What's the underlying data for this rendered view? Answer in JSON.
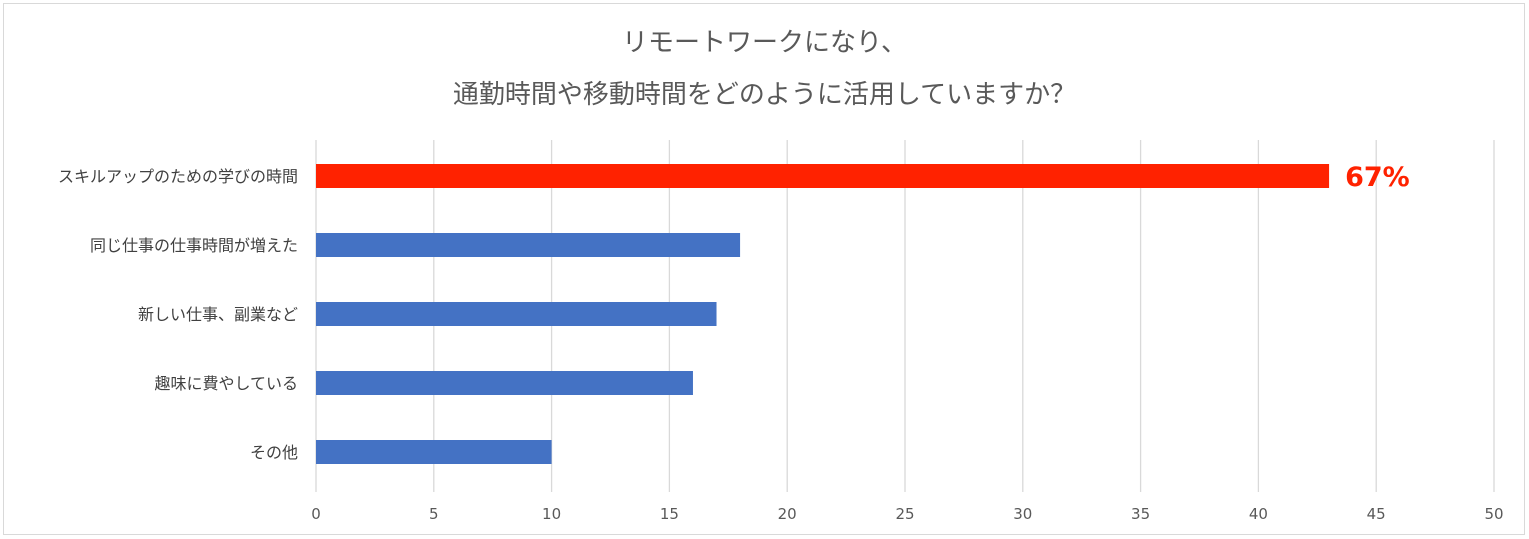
{
  "chart_data": {
    "type": "bar",
    "orientation": "horizontal",
    "title": [
      "リモートワークになり、",
      "通勤時間や移動時間をどのように活用していますか？"
    ],
    "categories": [
      "スキルアップのための学びの時間",
      "同じ仕事の仕事時間が増えた",
      "新しい仕事、副業など",
      "趣味に費やしている",
      "その他"
    ],
    "values": [
      43,
      18,
      17,
      16,
      10
    ],
    "bar_colors": [
      "#ff2200",
      "#4472c4",
      "#4472c4",
      "#4472c4",
      "#4472c4"
    ],
    "highlight_color": "#ff2200",
    "data_labels": [
      "67%",
      "",
      "",
      "",
      ""
    ],
    "xlim": [
      0,
      50
    ],
    "ticks": [
      0,
      5,
      10,
      15,
      20,
      25,
      30,
      35,
      40,
      45,
      50
    ],
    "xlabel": "",
    "ylabel": "",
    "grid": true,
    "legend": "none"
  }
}
